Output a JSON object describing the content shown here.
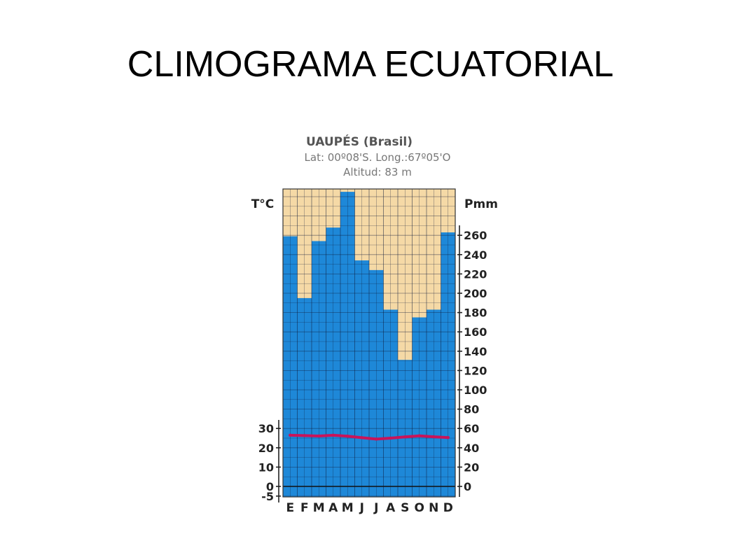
{
  "slide": {
    "title": "CLIMOGRAMA ECUATORIAL"
  },
  "chart_data": {
    "type": "bar",
    "title": "UAUPÉS (Brasil)",
    "subtitle_lines": [
      "Lat: 00º08'S.  Long.:67º05'O",
      "Altitud: 83 m"
    ],
    "categories": [
      "E",
      "F",
      "M",
      "A",
      "M",
      "J",
      "J",
      "A",
      "S",
      "O",
      "N",
      "D"
    ],
    "series": [
      {
        "name": "Pmm",
        "kind": "bar",
        "axis": "right",
        "values": [
          259,
          195,
          254,
          268,
          305,
          234,
          224,
          183,
          131,
          175,
          183,
          263
        ],
        "color": "#1e88d8"
      },
      {
        "name": "T°C",
        "kind": "line",
        "axis": "left",
        "values": [
          26.5,
          26.3,
          26.1,
          26.5,
          26.0,
          25.2,
          24.5,
          25.0,
          25.6,
          26.2,
          25.7,
          25.3
        ],
        "color": "#c8145a"
      }
    ],
    "ylabel_left": "T°C",
    "ylabel_right": "Pmm",
    "left_ticks": [
      "30",
      "20",
      "10",
      "0",
      "-5"
    ],
    "right_ticks": [
      "260",
      "240",
      "220",
      "200",
      "180",
      "160",
      "140",
      "120",
      "100",
      "80",
      "60",
      "40",
      "20",
      "0"
    ],
    "right_ylim": [
      -10,
      310
    ],
    "left_ylim": [
      -5,
      155
    ],
    "grid": true,
    "colors": {
      "background": "#f5d9a6",
      "bar": "#1e88d8",
      "grid": "#0d1a3a",
      "temperature": "#c8145a",
      "text": "#222222",
      "subtitle": "#777777"
    }
  }
}
